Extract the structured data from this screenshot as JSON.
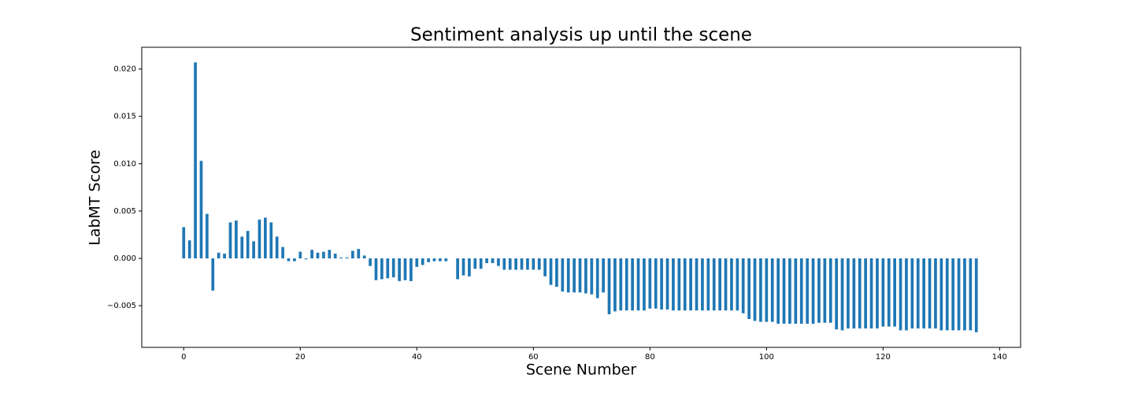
{
  "chart_data": {
    "type": "bar",
    "title": "Sentiment analysis up until the scene",
    "xlabel": "Scene Number",
    "ylabel": "LabMT Score",
    "color": "#1f77b4",
    "x": [
      0,
      1,
      2,
      3,
      4,
      5,
      6,
      7,
      8,
      9,
      10,
      11,
      12,
      13,
      14,
      15,
      16,
      17,
      18,
      19,
      20,
      21,
      22,
      23,
      24,
      25,
      26,
      27,
      28,
      29,
      30,
      31,
      32,
      33,
      34,
      35,
      36,
      37,
      38,
      39,
      40,
      41,
      42,
      43,
      44,
      45,
      46,
      47,
      48,
      49,
      50,
      51,
      52,
      53,
      54,
      55,
      56,
      57,
      58,
      59,
      60,
      61,
      62,
      63,
      64,
      65,
      66,
      67,
      68,
      69,
      70,
      71,
      72,
      73,
      74,
      75,
      76,
      77,
      78,
      79,
      80,
      81,
      82,
      83,
      84,
      85,
      86,
      87,
      88,
      89,
      90,
      91,
      92,
      93,
      94,
      95,
      96,
      97,
      98,
      99,
      100,
      101,
      102,
      103,
      104,
      105,
      106,
      107,
      108,
      109,
      110,
      111,
      112,
      113,
      114,
      115,
      116,
      117,
      118,
      119,
      120,
      121,
      122,
      123,
      124,
      125,
      126,
      127,
      128,
      129,
      130,
      131,
      132,
      133,
      134,
      135,
      136
    ],
    "values": [
      0.0033,
      0.0019,
      0.0207,
      0.0103,
      0.0047,
      -0.0034,
      0.0006,
      0.0005,
      0.0038,
      0.004,
      0.0023,
      0.0029,
      0.0018,
      0.0041,
      0.0043,
      0.0038,
      0.0023,
      0.0012,
      -0.0003,
      -0.0003,
      0.0007,
      -0.0001,
      0.0009,
      0.0006,
      0.0007,
      0.0009,
      0.0005,
      0.0001,
      0.0001,
      0.0008,
      0.001,
      0.0003,
      -0.0008,
      -0.0023,
      -0.0022,
      -0.0021,
      -0.002,
      -0.0024,
      -0.0023,
      -0.0024,
      -0.0009,
      -0.0007,
      -0.0004,
      -0.0003,
      -0.0003,
      -0.0003,
      0,
      -0.0022,
      -0.0018,
      -0.0019,
      -0.0011,
      -0.0011,
      -0.0005,
      -0.0005,
      -0.0008,
      -0.0012,
      -0.0012,
      -0.0012,
      -0.0012,
      -0.0012,
      -0.0012,
      -0.0012,
      -0.0019,
      -0.0028,
      -0.003,
      -0.0035,
      -0.0036,
      -0.0036,
      -0.0036,
      -0.0037,
      -0.0038,
      -0.0042,
      -0.0036,
      -0.0059,
      -0.0056,
      -0.0055,
      -0.0055,
      -0.0055,
      -0.0055,
      -0.0055,
      -0.0053,
      -0.0053,
      -0.0054,
      -0.0054,
      -0.0055,
      -0.0055,
      -0.0055,
      -0.0055,
      -0.0055,
      -0.0055,
      -0.0055,
      -0.0055,
      -0.0055,
      -0.0055,
      -0.0055,
      -0.0055,
      -0.0058,
      -0.0064,
      -0.0066,
      -0.0067,
      -0.0067,
      -0.0067,
      -0.0069,
      -0.0069,
      -0.0069,
      -0.0069,
      -0.0069,
      -0.0069,
      -0.0069,
      -0.0068,
      -0.0068,
      -0.0068,
      -0.0075,
      -0.0076,
      -0.0074,
      -0.0074,
      -0.0074,
      -0.0074,
      -0.0074,
      -0.0074,
      -0.0072,
      -0.0072,
      -0.0072,
      -0.0076,
      -0.0076,
      -0.0074,
      -0.0074,
      -0.0074,
      -0.0074,
      -0.0074,
      -0.0076,
      -0.0076,
      -0.0076,
      -0.0076,
      -0.0076,
      -0.0076,
      -0.0078
    ],
    "xlim": [
      -7.2,
      143.6
    ],
    "xticks": [
      0,
      20,
      40,
      60,
      80,
      100,
      120,
      140
    ],
    "ylim": [
      -0.0094,
      0.0223
    ],
    "yticks": [
      {
        "value": -0.005,
        "label": "−0.005"
      },
      {
        "value": 0,
        "label": "0.000"
      },
      {
        "value": 0.005,
        "label": "0.005"
      },
      {
        "value": 0.01,
        "label": "0.010"
      },
      {
        "value": 0.015,
        "label": "0.015"
      },
      {
        "value": 0.02,
        "label": "0.020"
      }
    ]
  }
}
